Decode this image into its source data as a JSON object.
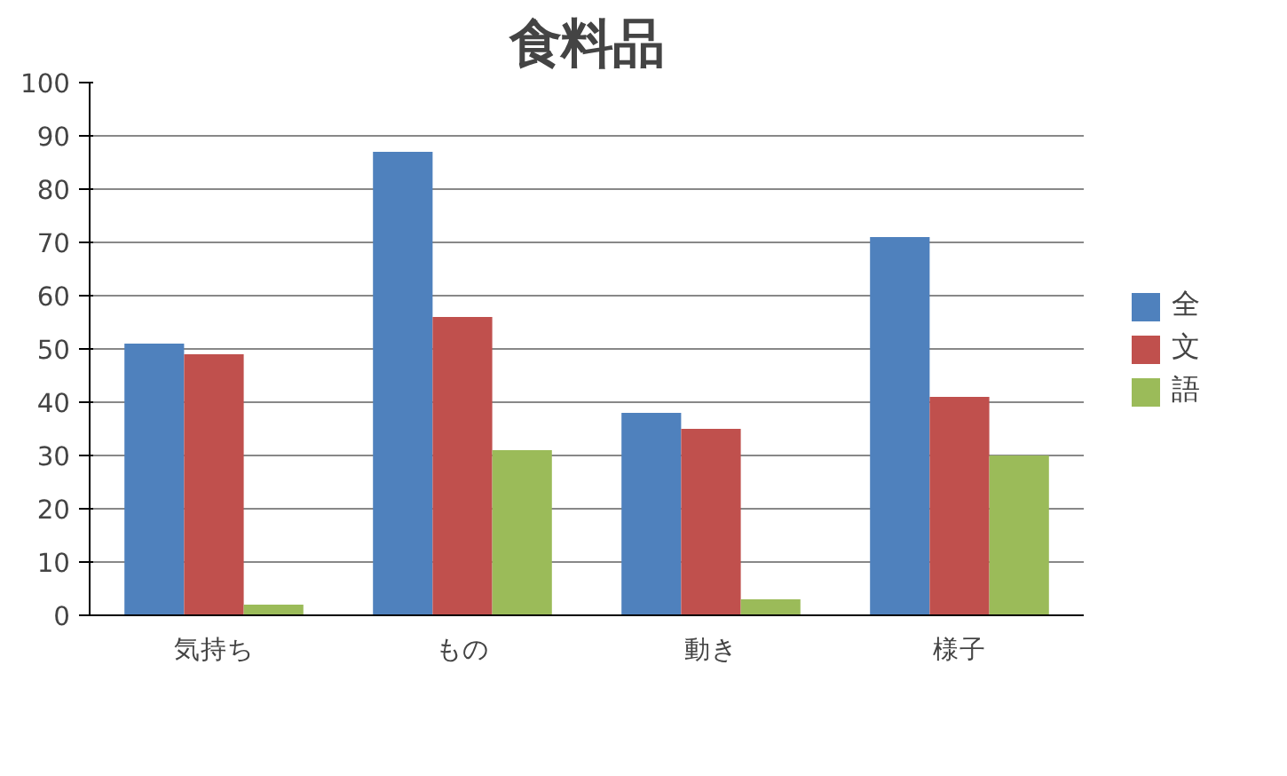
{
  "chart_data": {
    "type": "bar",
    "title": "食料品",
    "categories": [
      "気持ち",
      "もの",
      "動き",
      "様子"
    ],
    "series": [
      {
        "name": "全",
        "color": "#4f81bd",
        "values": [
          51,
          87,
          38,
          71
        ]
      },
      {
        "name": "文",
        "color": "#c0504d",
        "values": [
          49,
          56,
          35,
          41
        ]
      },
      {
        "name": "語",
        "color": "#9bbb59",
        "values": [
          2,
          31,
          3,
          30
        ]
      }
    ],
    "ylim": [
      0,
      100
    ],
    "yticks": [
      0,
      10,
      20,
      30,
      40,
      50,
      60,
      70,
      80,
      90,
      100
    ],
    "grid": "y",
    "legend": "right"
  }
}
